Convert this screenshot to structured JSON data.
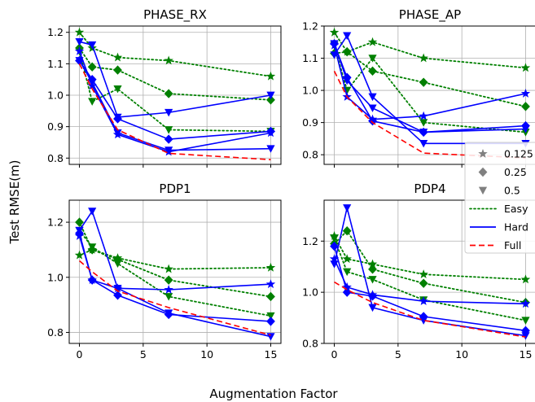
{
  "figure": {
    "ylabel": "Test RMSE(m)",
    "xlabel": "Augmentation Factor"
  },
  "legend": {
    "placement": "right",
    "entries": [
      {
        "label": "0.125",
        "kind": "marker",
        "marker": "star",
        "color": "#808080"
      },
      {
        "label": "0.25",
        "kind": "marker",
        "marker": "diamond",
        "color": "#808080"
      },
      {
        "label": "0.5",
        "kind": "marker",
        "marker": "triangle-down",
        "color": "#808080"
      },
      {
        "label": "Easy",
        "kind": "line",
        "style": "dotted",
        "color": "#008000"
      },
      {
        "label": "Hard",
        "kind": "line",
        "style": "solid",
        "color": "#0000ff"
      },
      {
        "label": "Full",
        "kind": "line",
        "style": "dashed",
        "color": "#ff0000"
      }
    ]
  },
  "chart_data": [
    {
      "type": "line",
      "title": "PHASE_RX",
      "x": [
        0,
        1,
        3,
        7,
        15
      ],
      "xticks": [
        0,
        5,
        10,
        15
      ],
      "xlim": [
        -0.8,
        15.8
      ],
      "ylim": [
        0.78,
        1.22
      ],
      "yticks": [
        0.8,
        0.9,
        1.0,
        1.1,
        1.2
      ],
      "yticklabels": [
        "0.8",
        "0.9",
        "1.0",
        "1.1",
        "1.2"
      ],
      "show_xticklabels": false,
      "grid": true,
      "series": [
        {
          "group": "Easy",
          "marker": "star",
          "values": [
            1.2,
            1.15,
            1.12,
            1.11,
            1.06
          ]
        },
        {
          "group": "Easy",
          "marker": "diamond",
          "values": [
            1.15,
            1.09,
            1.08,
            1.005,
            0.985
          ]
        },
        {
          "group": "Easy",
          "marker": "triangle-down",
          "values": [
            1.14,
            0.98,
            1.02,
            0.89,
            0.885
          ]
        },
        {
          "group": "Hard",
          "marker": "star",
          "values": [
            1.14,
            1.03,
            0.875,
            0.82,
            0.88
          ]
        },
        {
          "group": "Hard",
          "marker": "diamond",
          "values": [
            1.11,
            1.05,
            0.925,
            0.86,
            0.885
          ]
        },
        {
          "group": "Hard",
          "marker": "triangle-down",
          "values": [
            1.17,
            1.16,
            0.93,
            0.945,
            1.0
          ]
        },
        {
          "group": "Hard",
          "marker": "triangle-down",
          "values": [
            1.11,
            1.04,
            0.88,
            0.825,
            0.83
          ]
        },
        {
          "group": "Full",
          "marker": "none",
          "values": [
            1.1,
            1.02,
            0.89,
            0.815,
            0.795
          ]
        }
      ]
    },
    {
      "type": "line",
      "title": "PHASE_AP",
      "x": [
        0,
        1,
        3,
        7,
        15
      ],
      "xticks": [
        0,
        5,
        10,
        15
      ],
      "xlim": [
        -0.8,
        15.8
      ],
      "ylim": [
        0.77,
        1.2
      ],
      "yticks": [
        0.8,
        0.9,
        1.0,
        1.1,
        1.2
      ],
      "yticklabels": [
        "0.8",
        "0.9",
        "1.0",
        "1.1",
        "1.2"
      ],
      "show_xticklabels": false,
      "grid": true,
      "series": [
        {
          "group": "Easy",
          "marker": "star",
          "values": [
            1.18,
            1.12,
            1.15,
            1.1,
            1.07
          ]
        },
        {
          "group": "Easy",
          "marker": "diamond",
          "values": [
            1.115,
            1.12,
            1.06,
            1.025,
            0.95
          ]
        },
        {
          "group": "Easy",
          "marker": "triangle-down",
          "values": [
            1.14,
            1.0,
            1.1,
            0.9,
            0.87
          ]
        },
        {
          "group": "Hard",
          "marker": "star",
          "values": [
            1.14,
            0.98,
            0.91,
            0.92,
            0.99
          ]
        },
        {
          "group": "Hard",
          "marker": "diamond",
          "values": [
            1.145,
            1.04,
            0.905,
            0.87,
            0.89
          ]
        },
        {
          "group": "Hard",
          "marker": "triangle-down",
          "values": [
            1.11,
            1.17,
            0.98,
            0.835,
            0.835
          ]
        },
        {
          "group": "Hard",
          "marker": "triangle-down",
          "values": [
            1.145,
            1.03,
            0.945,
            0.87,
            0.88
          ]
        },
        {
          "group": "Full",
          "marker": "none",
          "values": [
            1.06,
            0.98,
            0.9,
            0.805,
            0.79
          ]
        }
      ]
    },
    {
      "type": "line",
      "title": "PDP1",
      "x": [
        0,
        1,
        3,
        7,
        15
      ],
      "xticks": [
        0,
        5,
        10,
        15
      ],
      "xticklabels": [
        "0",
        "5",
        "10",
        "15"
      ],
      "xlim": [
        -0.8,
        15.8
      ],
      "ylim": [
        0.76,
        1.28
      ],
      "yticks": [
        0.8,
        1.0,
        1.2
      ],
      "yticklabels": [
        "0.8",
        "1.0",
        "1.2"
      ],
      "show_xticklabels": true,
      "grid": true,
      "series": [
        {
          "group": "Easy",
          "marker": "star",
          "values": [
            1.08,
            1.1,
            1.07,
            1.03,
            1.035
          ]
        },
        {
          "group": "Easy",
          "marker": "diamond",
          "values": [
            1.2,
            1.1,
            1.065,
            0.99,
            0.93
          ]
        },
        {
          "group": "Easy",
          "marker": "triangle-down",
          "values": [
            1.17,
            1.11,
            1.05,
            0.93,
            0.86
          ]
        },
        {
          "group": "Hard",
          "marker": "star",
          "values": [
            1.15,
            0.99,
            0.96,
            0.955,
            0.975
          ]
        },
        {
          "group": "Hard",
          "marker": "diamond",
          "values": [
            1.16,
            0.99,
            0.935,
            0.865,
            0.84
          ]
        },
        {
          "group": "Hard",
          "marker": "triangle-down",
          "values": [
            1.17,
            1.24,
            0.96,
            0.87,
            0.785
          ]
        },
        {
          "group": "Full",
          "marker": "none",
          "values": [
            1.06,
            1.02,
            0.95,
            0.89,
            0.79
          ]
        }
      ]
    },
    {
      "type": "line",
      "title": "PDP4",
      "x": [
        0,
        1,
        3,
        7,
        15
      ],
      "xticks": [
        0,
        5,
        10,
        15
      ],
      "xticklabels": [
        "0",
        "5",
        "10",
        "15"
      ],
      "xlim": [
        -0.8,
        15.8
      ],
      "ylim": [
        0.8,
        1.36
      ],
      "yticks": [
        0.8,
        1.0,
        1.2
      ],
      "yticklabels": [
        "0.8",
        "1.0",
        "1.2"
      ],
      "show_xticklabels": true,
      "grid": true,
      "series": [
        {
          "group": "Easy",
          "marker": "star",
          "values": [
            1.22,
            1.13,
            1.11,
            1.07,
            1.05
          ]
        },
        {
          "group": "Easy",
          "marker": "diamond",
          "values": [
            1.19,
            1.24,
            1.09,
            1.035,
            0.96
          ]
        },
        {
          "group": "Easy",
          "marker": "triangle-down",
          "values": [
            1.21,
            1.08,
            1.05,
            0.97,
            0.89
          ]
        },
        {
          "group": "Hard",
          "marker": "star",
          "values": [
            1.13,
            1.02,
            0.99,
            0.965,
            0.955
          ]
        },
        {
          "group": "Hard",
          "marker": "diamond",
          "values": [
            1.18,
            1.0,
            0.985,
            0.905,
            0.85
          ]
        },
        {
          "group": "Hard",
          "marker": "triangle-down",
          "values": [
            1.11,
            1.33,
            0.94,
            0.89,
            0.83
          ]
        },
        {
          "group": "Full",
          "marker": "none",
          "values": [
            1.04,
            1.01,
            0.96,
            0.89,
            0.825
          ]
        }
      ]
    }
  ]
}
